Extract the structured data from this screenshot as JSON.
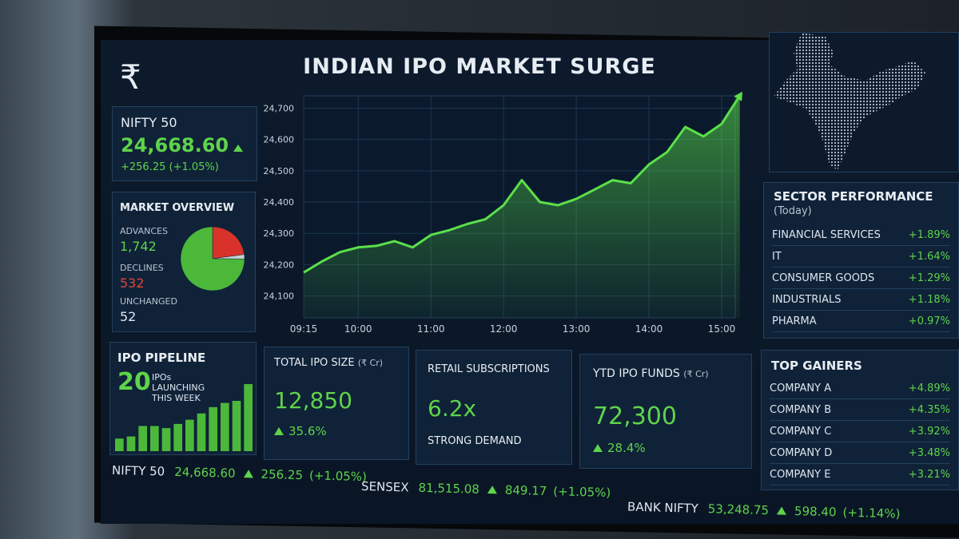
{
  "header": {
    "currency_symbol": "₹",
    "title": "INDIAN IPO MARKET SURGE"
  },
  "nifty_card": {
    "label": "NIFTY 50",
    "value": "24,668.60",
    "change": "+256.25 (+1.05%)"
  },
  "market_overview": {
    "title": "MARKET OVERVIEW",
    "items": [
      {
        "label": "ADVANCES",
        "count": {
          "value": 1742,
          "label": "1,742"
        },
        "color": "#4cb83a"
      },
      {
        "label": "DECLINES",
        "count": {
          "value": 532,
          "label": "532"
        },
        "color": "#d8322a"
      },
      {
        "label": "UNCHANGED",
        "count": {
          "value": 52,
          "label": "52"
        },
        "color": "#c9ced4"
      }
    ]
  },
  "ipo_pipeline": {
    "title": "IPO PIPELINE",
    "count": "20",
    "caption": "IPOs LAUNCHING THIS WEEK",
    "bar_values": [
      3,
      3.5,
      6,
      6,
      5.5,
      6.5,
      7.5,
      9,
      10.5,
      11.5,
      12,
      16
    ],
    "color": "#4cb83a"
  },
  "chart": {
    "type": "line",
    "color": "#5be04a",
    "x": [
      "09:15",
      "09:30",
      "09:45",
      "10:00",
      "10:15",
      "10:30",
      "10:45",
      "11:00",
      "11:15",
      "11:30",
      "11:45",
      "12:00",
      "12:15",
      "12:30",
      "12:45",
      "13:00",
      "13:15",
      "13:30",
      "13:45",
      "14:00",
      "14:15",
      "14:30",
      "14:45",
      "15:00",
      "15:15"
    ],
    "values": [
      24175,
      24210,
      24240,
      24255,
      24260,
      24275,
      24255,
      24295,
      24310,
      24330,
      24345,
      24390,
      24470,
      24400,
      24390,
      24410,
      24440,
      24470,
      24460,
      24520,
      24560,
      24640,
      24610,
      24650,
      24740
    ],
    "xticks": [
      "09:15",
      "10:00",
      "11:00",
      "12:00",
      "13:00",
      "14:00",
      "15:00"
    ],
    "ylim": [
      24030,
      24760
    ],
    "yticks": [
      {
        "value": 24100,
        "label": "24,100"
      },
      {
        "value": 24200,
        "label": "24,200"
      },
      {
        "value": 24300,
        "label": "24,300"
      },
      {
        "value": 24400,
        "label": "24,400"
      },
      {
        "value": 24500,
        "label": "24,500"
      },
      {
        "value": 24600,
        "label": "24,600"
      },
      {
        "value": 24700,
        "label": "24,700"
      }
    ],
    "grid": true
  },
  "kpis": [
    {
      "title": "TOTAL IPO SIZE",
      "unit": "(₹ Cr)",
      "value": "12,850",
      "change": "35.6%"
    },
    {
      "title": "RETAIL SUBSCRIPTIONS",
      "value": "6.2x",
      "caption": "STRONG DEMAND"
    },
    {
      "title": "YTD IPO FUNDS",
      "unit": "(₹ Cr)",
      "value": "72,300",
      "change": "28.4%"
    }
  ],
  "sector_performance": {
    "title": "SECTOR PERFORMANCE",
    "subtitle": "(Today)",
    "rows": [
      [
        "FINANCIAL SERVICES",
        "+1.89%"
      ],
      [
        "IT",
        "+1.64%"
      ],
      [
        "CONSUMER GOODS",
        "+1.29%"
      ],
      [
        "INDUSTRIALS",
        "+1.18%"
      ],
      [
        "PHARMA",
        "+0.97%"
      ]
    ]
  },
  "top_gainers": {
    "title": "TOP GAINERS",
    "rows": [
      [
        "COMPANY A",
        "+4.89%"
      ],
      [
        "COMPANY B",
        "+4.35%"
      ],
      [
        "COMPANY C",
        "+3.92%"
      ],
      [
        "COMPANY D",
        "+3.48%"
      ],
      [
        "COMPANY E",
        "+3.21%"
      ]
    ]
  },
  "ticker": [
    {
      "name": "NIFTY 50",
      "value": "24,668.60",
      "change": "256.25",
      "pct": "(+1.05%)"
    },
    {
      "name": "SENSEX",
      "value": "81,515.08",
      "change": "849.17",
      "pct": "(+1.05%)"
    },
    {
      "name": "BANK NIFTY",
      "value": "53,248.75",
      "change": "598.40",
      "pct": "(+1.14%)"
    }
  ]
}
